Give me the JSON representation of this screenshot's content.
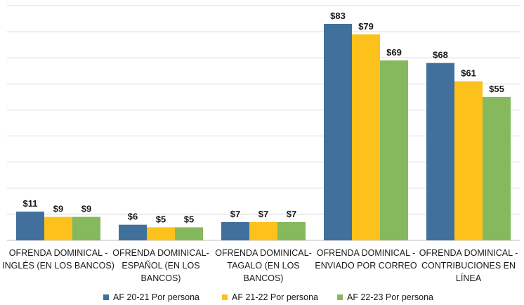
{
  "chart_data": {
    "type": "bar",
    "categories": [
      [
        "OFRENDA DOMINICAL -",
        "INGLÉS (EN LOS BANCOS)"
      ],
      [
        "OFRENDA DOMINICAL-",
        "ESPAÑOL  (EN LOS",
        "BANCOS)"
      ],
      [
        "OFRENDA DOMINICAL-",
        "TAGALO  (EN LOS",
        "BANCOS)"
      ],
      [
        "OFRENDA DOMINICAL -",
        "ENVIADO POR CORREO"
      ],
      [
        "OFRENDA DOMINICAL -",
        "CONTRIBUCIONES EN",
        "LÍNEA"
      ]
    ],
    "series": [
      {
        "name": "AF 20-21 Por persona",
        "color": "#41709c",
        "values": [
          11,
          6,
          7,
          83,
          68
        ],
        "labels": [
          "$11",
          "$6",
          "$7",
          "$83",
          "$68"
        ]
      },
      {
        "name": "AF 21-22 Por persona",
        "color": "#fcc21b",
        "values": [
          9,
          5,
          7,
          79,
          61
        ],
        "labels": [
          "$9",
          "$5",
          "$7",
          "$79",
          "$61"
        ]
      },
      {
        "name": "AF 22-23 Por persona",
        "color": "#86b95d",
        "values": [
          9,
          5,
          7,
          69,
          55
        ],
        "labels": [
          "$9",
          "$5",
          "$7",
          "$69",
          "$55"
        ]
      }
    ],
    "ylim": [
      0,
      90
    ],
    "grid": true,
    "legend_position": "bottom"
  }
}
